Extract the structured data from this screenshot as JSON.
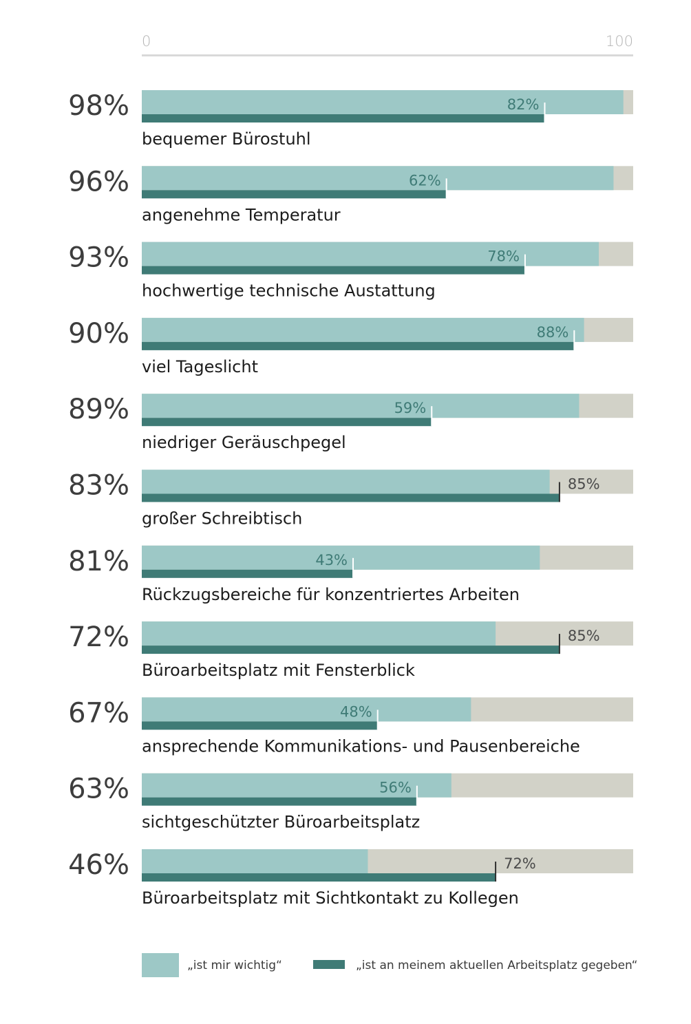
{
  "colors": {
    "track": "#d2d2c8",
    "wichtig": "#9dc8c6",
    "gegeben": "#3f7b76",
    "gegeben_label_inside": "#3f7b76",
    "gegeben_label_outside": "#4a4a4a",
    "axis": "#d9d9d9"
  },
  "chart_data": {
    "type": "bar",
    "orientation": "horizontal",
    "xlim": [
      0,
      100
    ],
    "x_tick_labels": [
      "0",
      "100"
    ],
    "categories": [
      "bequemer Bürostuhl",
      "angenehme Temperatur",
      "hochwertige technische Austattung",
      "viel Tageslicht",
      "niedriger Geräuschpegel",
      "großer Schreibtisch",
      "Rückzugsbereiche für konzentriertes Arbeiten",
      "Büroarbeitsplatz mit Fensterblick",
      "ansprechende Kommunikations- und Pausenbereiche",
      "sichtgeschützter Büroarbeitsplatz",
      "Büroarbeitsplatz mit Sichtkontakt zu Kollegen"
    ],
    "series": [
      {
        "name": "„ist mir wichtig“",
        "values": [
          98,
          96,
          93,
          90,
          89,
          83,
          81,
          72,
          67,
          63,
          46
        ],
        "labels": [
          "98%",
          "96%",
          "93%",
          "90%",
          "89%",
          "83%",
          "81%",
          "72%",
          "67%",
          "63%",
          "46%"
        ]
      },
      {
        "name": "„ist an meinem aktuellen Arbeitsplatz gegeben“",
        "values": [
          82,
          62,
          78,
          88,
          59,
          85,
          43,
          85,
          48,
          56,
          72
        ],
        "labels": [
          "82%",
          "62%",
          "78%",
          "88%",
          "59%",
          "85%",
          "43%",
          "85%",
          "48%",
          "56%",
          "72%"
        ]
      }
    ]
  },
  "legend": {
    "wichtig": "„ist mir wichtig“",
    "gegeben": "„ist an meinem aktuellen Arbeitsplatz gegeben“"
  }
}
